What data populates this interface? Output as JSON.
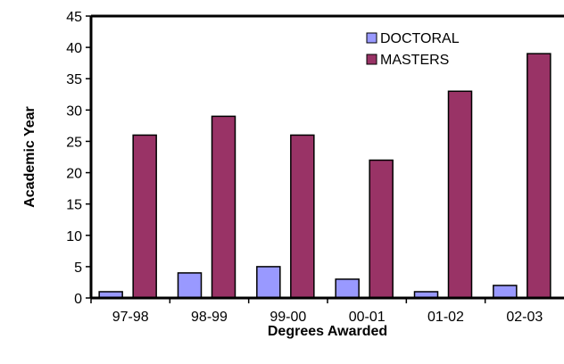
{
  "chart_data": {
    "type": "bar",
    "categories": [
      "97-98",
      "98-99",
      "99-00",
      "00-01",
      "01-02",
      "02-03"
    ],
    "series": [
      {
        "name": "DOCTORAL",
        "values": [
          1,
          4,
          5,
          3,
          1,
          2
        ],
        "color": "#9999FF"
      },
      {
        "name": "MASTERS",
        "values": [
          26,
          29,
          26,
          22,
          33,
          39
        ],
        "color": "#993366"
      }
    ],
    "title": "",
    "xlabel": "Degrees Awarded",
    "ylabel": "Academic Year",
    "ylim": [
      0,
      45
    ],
    "yticks": [
      0,
      5,
      10,
      15,
      20,
      25,
      30,
      35,
      40,
      45
    ],
    "grid": false,
    "legend_position": "top-right"
  }
}
